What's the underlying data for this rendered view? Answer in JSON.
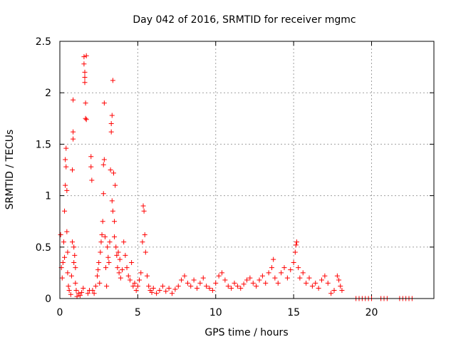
{
  "chart_data": {
    "type": "scatter",
    "title": "Day 042 of 2016, SRMTID for receiver mgmc",
    "xlabel": "GPS time / hours",
    "ylabel": "SRMTID / TECUs",
    "xlim": [
      0,
      24
    ],
    "ylim": [
      0,
      2.5
    ],
    "xticks": [
      0,
      5,
      10,
      15,
      20
    ],
    "xtick_labels": [
      "0",
      "5",
      "10",
      "15",
      "20"
    ],
    "yticks": [
      0,
      0.5,
      1,
      1.5,
      2,
      2.5
    ],
    "ytick_labels": [
      "0",
      "0.5",
      "1",
      "1.5",
      "2",
      "2.5"
    ],
    "grid": true,
    "marker": "+",
    "color": "#ff0000",
    "series": [
      {
        "name": "SRMTID",
        "points": [
          [
            0.05,
            0.62
          ],
          [
            0.1,
            0.3
          ],
          [
            0.15,
            0.2
          ],
          [
            0.2,
            0.35
          ],
          [
            0.25,
            0.55
          ],
          [
            0.3,
            0.4
          ],
          [
            0.3,
            0.85
          ],
          [
            0.35,
            1.1
          ],
          [
            0.35,
            1.35
          ],
          [
            0.4,
            1.46
          ],
          [
            0.4,
            1.28
          ],
          [
            0.45,
            1.05
          ],
          [
            0.45,
            0.65
          ],
          [
            0.5,
            0.45
          ],
          [
            0.5,
            0.25
          ],
          [
            0.55,
            0.12
          ],
          [
            0.6,
            0.08
          ],
          [
            0.7,
            0.04
          ],
          [
            0.75,
            0.22
          ],
          [
            0.8,
            0.55
          ],
          [
            0.8,
            1.25
          ],
          [
            0.85,
            1.62
          ],
          [
            0.85,
            1.55
          ],
          [
            0.85,
            1.93
          ],
          [
            0.9,
            0.5
          ],
          [
            0.9,
            0.35
          ],
          [
            0.95,
            0.42
          ],
          [
            1.0,
            0.3
          ],
          [
            1.0,
            0.15
          ],
          [
            1.05,
            0.08
          ],
          [
            1.1,
            0.02
          ],
          [
            1.2,
            0.05
          ],
          [
            1.3,
            0.03
          ],
          [
            1.4,
            0.06
          ],
          [
            1.5,
            0.1
          ],
          [
            1.55,
            2.35
          ],
          [
            1.55,
            2.28
          ],
          [
            1.6,
            2.2
          ],
          [
            1.6,
            2.15
          ],
          [
            1.6,
            2.1
          ],
          [
            1.65,
            1.9
          ],
          [
            1.65,
            1.75
          ],
          [
            1.7,
            1.74
          ],
          [
            1.7,
            2.36
          ],
          [
            1.8,
            0.05
          ],
          [
            1.9,
            0.08
          ],
          [
            2.0,
            1.28
          ],
          [
            2.0,
            1.38
          ],
          [
            2.05,
            1.15
          ],
          [
            2.1,
            0.08
          ],
          [
            2.2,
            0.05
          ],
          [
            2.3,
            0.12
          ],
          [
            2.4,
            0.22
          ],
          [
            2.45,
            0.28
          ],
          [
            2.5,
            0.35
          ],
          [
            2.55,
            0.15
          ],
          [
            2.6,
            0.45
          ],
          [
            2.65,
            0.55
          ],
          [
            2.7,
            0.62
          ],
          [
            2.75,
            0.75
          ],
          [
            2.8,
            1.02
          ],
          [
            2.8,
            1.3
          ],
          [
            2.85,
            1.35
          ],
          [
            2.85,
            1.9
          ],
          [
            2.9,
            0.6
          ],
          [
            2.95,
            0.3
          ],
          [
            3.0,
            0.12
          ],
          [
            3.05,
            0.5
          ],
          [
            3.1,
            0.4
          ],
          [
            3.15,
            0.35
          ],
          [
            3.2,
            0.55
          ],
          [
            3.25,
            1.25
          ],
          [
            3.3,
            1.62
          ],
          [
            3.3,
            1.7
          ],
          [
            3.35,
            1.78
          ],
          [
            3.35,
            0.95
          ],
          [
            3.4,
            2.12
          ],
          [
            3.4,
            0.85
          ],
          [
            3.45,
            1.22
          ],
          [
            3.5,
            0.75
          ],
          [
            3.5,
            0.6
          ],
          [
            3.55,
            1.1
          ],
          [
            3.6,
            0.5
          ],
          [
            3.65,
            0.42
          ],
          [
            3.7,
            0.3
          ],
          [
            3.75,
            0.45
          ],
          [
            3.8,
            0.25
          ],
          [
            3.85,
            0.38
          ],
          [
            3.9,
            0.2
          ],
          [
            4.0,
            0.28
          ],
          [
            4.1,
            0.55
          ],
          [
            4.2,
            0.42
          ],
          [
            4.3,
            0.3
          ],
          [
            4.4,
            0.22
          ],
          [
            4.5,
            0.18
          ],
          [
            4.6,
            0.35
          ],
          [
            4.7,
            0.12
          ],
          [
            4.8,
            0.15
          ],
          [
            4.9,
            0.08
          ],
          [
            5.0,
            0.12
          ],
          [
            5.1,
            0.18
          ],
          [
            5.2,
            0.25
          ],
          [
            5.3,
            0.55
          ],
          [
            5.35,
            0.9
          ],
          [
            5.4,
            0.85
          ],
          [
            5.45,
            0.62
          ],
          [
            5.5,
            0.45
          ],
          [
            5.6,
            0.22
          ],
          [
            5.7,
            0.12
          ],
          [
            5.8,
            0.08
          ],
          [
            5.9,
            0.06
          ],
          [
            6.0,
            0.1
          ],
          [
            6.2,
            0.05
          ],
          [
            6.4,
            0.08
          ],
          [
            6.6,
            0.12
          ],
          [
            6.8,
            0.07
          ],
          [
            7.0,
            0.1
          ],
          [
            7.2,
            0.05
          ],
          [
            7.4,
            0.09
          ],
          [
            7.6,
            0.12
          ],
          [
            7.8,
            0.18
          ],
          [
            8.0,
            0.22
          ],
          [
            8.2,
            0.15
          ],
          [
            8.4,
            0.12
          ],
          [
            8.6,
            0.18
          ],
          [
            8.8,
            0.1
          ],
          [
            9.0,
            0.15
          ],
          [
            9.2,
            0.2
          ],
          [
            9.4,
            0.12
          ],
          [
            9.6,
            0.1
          ],
          [
            9.8,
            0.08
          ],
          [
            10.0,
            0.15
          ],
          [
            10.2,
            0.22
          ],
          [
            10.4,
            0.25
          ],
          [
            10.6,
            0.18
          ],
          [
            10.8,
            0.12
          ],
          [
            11.0,
            0.1
          ],
          [
            11.2,
            0.15
          ],
          [
            11.4,
            0.12
          ],
          [
            11.6,
            0.1
          ],
          [
            11.8,
            0.14
          ],
          [
            12.0,
            0.18
          ],
          [
            12.2,
            0.2
          ],
          [
            12.4,
            0.15
          ],
          [
            12.6,
            0.12
          ],
          [
            12.8,
            0.18
          ],
          [
            13.0,
            0.22
          ],
          [
            13.2,
            0.15
          ],
          [
            13.4,
            0.25
          ],
          [
            13.6,
            0.3
          ],
          [
            13.7,
            0.38
          ],
          [
            13.8,
            0.2
          ],
          [
            14.0,
            0.15
          ],
          [
            14.2,
            0.25
          ],
          [
            14.4,
            0.3
          ],
          [
            14.6,
            0.2
          ],
          [
            14.8,
            0.28
          ],
          [
            15.0,
            0.35
          ],
          [
            15.1,
            0.45
          ],
          [
            15.15,
            0.52
          ],
          [
            15.2,
            0.55
          ],
          [
            15.3,
            0.3
          ],
          [
            15.4,
            0.2
          ],
          [
            15.6,
            0.25
          ],
          [
            15.8,
            0.15
          ],
          [
            16.0,
            0.2
          ],
          [
            16.2,
            0.12
          ],
          [
            16.4,
            0.15
          ],
          [
            16.6,
            0.1
          ],
          [
            16.8,
            0.18
          ],
          [
            17.0,
            0.22
          ],
          [
            17.2,
            0.15
          ],
          [
            17.4,
            0.05
          ],
          [
            17.6,
            0.08
          ],
          [
            17.8,
            0.22
          ],
          [
            17.9,
            0.18
          ],
          [
            18.0,
            0.12
          ],
          [
            18.1,
            0.08
          ],
          [
            19.0,
            0.0
          ],
          [
            19.2,
            0.0
          ],
          [
            19.4,
            0.0
          ],
          [
            19.6,
            0.0
          ],
          [
            19.8,
            0.0
          ],
          [
            20.0,
            0.0
          ],
          [
            20.6,
            0.0
          ],
          [
            20.8,
            0.0
          ],
          [
            21.0,
            0.0
          ],
          [
            21.8,
            0.0
          ],
          [
            22.0,
            0.0
          ],
          [
            22.2,
            0.0
          ],
          [
            22.4,
            0.0
          ],
          [
            22.6,
            0.0
          ]
        ]
      }
    ]
  }
}
